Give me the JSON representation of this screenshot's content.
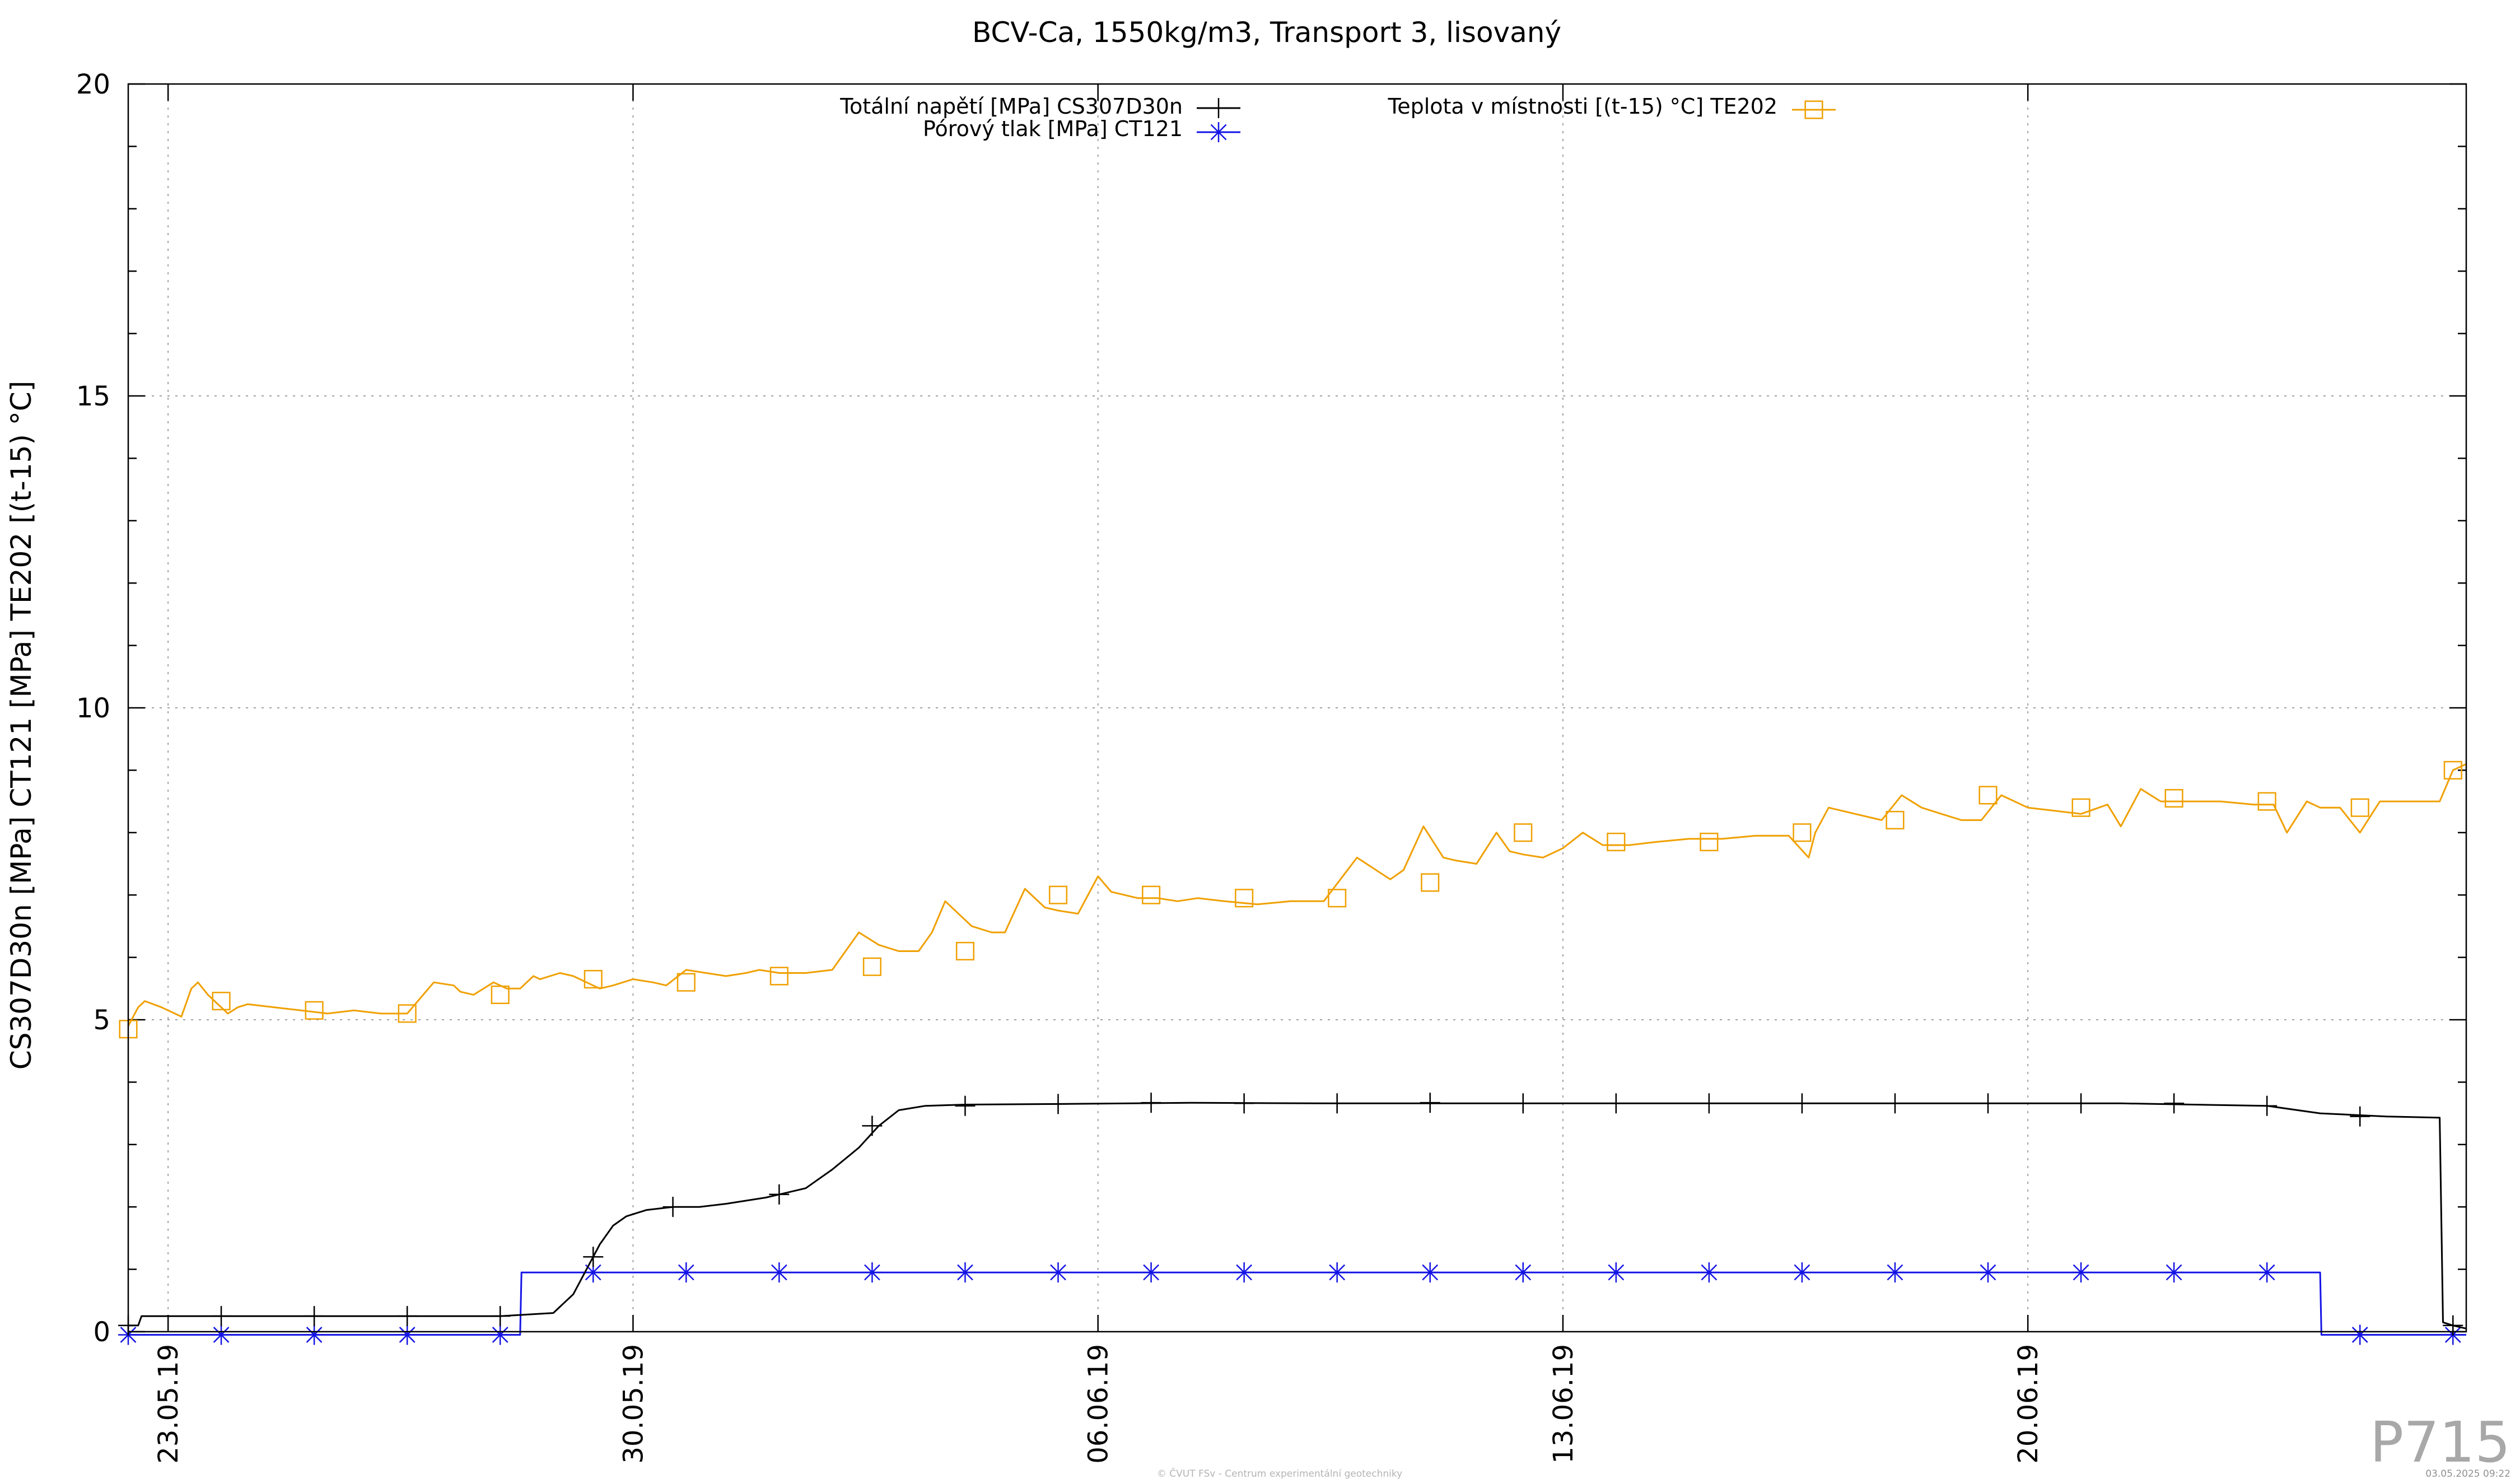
{
  "chart_data": {
    "type": "line",
    "title": "BCV-Ca, 1550kg/m3, Transport 3, lisovaný",
    "ylabel": "CS307D30n [MPa] CT121 [MPa] TE202 [(t-15) °C]",
    "xlabel": "",
    "ylim": [
      0,
      20
    ],
    "yticks": [
      "0",
      "5",
      "10",
      "15",
      "20"
    ],
    "x_unit": "days",
    "xlim": [
      0,
      35.2
    ],
    "xticks": [
      {
        "label": "23.05.19",
        "x": 0.6
      },
      {
        "label": "30.05.19",
        "x": 7.6
      },
      {
        "label": "06.06.19",
        "x": 14.6
      },
      {
        "label": "13.06.19",
        "x": 21.6
      },
      {
        "label": "20.06.19",
        "x": 28.6
      }
    ],
    "grid": true,
    "legend_position": "top",
    "series": [
      {
        "name": "Totální napětí [MPa] CS307D30n",
        "color": "#000000",
        "marker": "plus",
        "x": [
          0,
          0.15,
          0.2,
          1.4,
          2.8,
          4.2,
          5.6,
          6.4,
          6.7,
          6.85,
          7.0,
          7.1,
          7.3,
          7.5,
          7.8,
          8.2,
          8.6,
          9.0,
          9.6,
          10.2,
          10.6,
          11.0,
          11.3,
          11.6,
          12.0,
          12.6,
          14.0,
          16.0,
          18.0,
          20.0,
          22.0,
          24.0,
          26.0,
          28.0,
          30.0,
          32.2,
          33.0,
          34.0,
          34.8,
          34.85,
          35.0,
          35.2
        ],
        "y": [
          0.1,
          0.1,
          0.25,
          0.25,
          0.25,
          0.25,
          0.25,
          0.3,
          0.6,
          0.9,
          1.2,
          1.4,
          1.7,
          1.85,
          1.95,
          2.0,
          2.0,
          2.05,
          2.15,
          2.3,
          2.6,
          2.95,
          3.3,
          3.55,
          3.62,
          3.64,
          3.65,
          3.67,
          3.66,
          3.66,
          3.66,
          3.66,
          3.66,
          3.66,
          3.66,
          3.62,
          3.5,
          3.45,
          3.43,
          0.15,
          0.1,
          0.05
        ],
        "marker_x": [
          0.0,
          1.4,
          2.8,
          4.2,
          5.6,
          7.0,
          8.2,
          9.8,
          11.2,
          12.6,
          14.0,
          15.4,
          16.8,
          18.2,
          19.6,
          21.0,
          22.4,
          23.8,
          25.2,
          26.6,
          28.0,
          29.4,
          30.8,
          32.2,
          33.6,
          35.0
        ],
        "marker_y": [
          0.1,
          0.25,
          0.25,
          0.25,
          0.25,
          1.2,
          2.0,
          2.2,
          3.3,
          3.62,
          3.65,
          3.67,
          3.66,
          3.66,
          3.67,
          3.66,
          3.66,
          3.66,
          3.66,
          3.66,
          3.66,
          3.66,
          3.66,
          3.62,
          3.45,
          0.1
        ]
      },
      {
        "name": "Pórový tlak [MPa] CT121",
        "color": "#1414e6",
        "marker": "star",
        "x": [
          0,
          5.9,
          5.92,
          33.0,
          33.02,
          35.2
        ],
        "y": [
          -0.05,
          -0.05,
          0.95,
          0.95,
          -0.05,
          -0.05
        ],
        "marker_x": [
          0,
          1.4,
          2.8,
          4.2,
          5.6,
          7.0,
          8.4,
          9.8,
          11.2,
          12.6,
          14.0,
          15.4,
          16.8,
          18.2,
          19.6,
          21.0,
          22.4,
          23.8,
          25.2,
          26.6,
          28.0,
          29.4,
          30.8,
          32.2,
          33.6,
          35.0
        ],
        "marker_y": [
          -0.05,
          -0.05,
          -0.05,
          -0.05,
          -0.05,
          0.95,
          0.95,
          0.95,
          0.95,
          0.95,
          0.95,
          0.95,
          0.95,
          0.95,
          0.95,
          0.95,
          0.95,
          0.95,
          0.95,
          0.95,
          0.95,
          0.95,
          0.95,
          0.95,
          -0.05,
          -0.05
        ]
      },
      {
        "name": "Teplota v místnosti [(t-15) °C] TE202",
        "color": "#f0a000",
        "marker": "square",
        "x": [
          0,
          0.15,
          0.25,
          0.5,
          0.8,
          0.95,
          1.05,
          1.2,
          1.5,
          1.65,
          1.8,
          2.2,
          2.6,
          3.0,
          3.4,
          3.8,
          4.2,
          4.6,
          4.9,
          5.0,
          5.2,
          5.5,
          5.7,
          5.9,
          6.1,
          6.2,
          6.5,
          6.7,
          6.9,
          7.1,
          7.3,
          7.6,
          7.9,
          8.1,
          8.4,
          8.7,
          9.0,
          9.3,
          9.5,
          9.8,
          10.2,
          10.6,
          11.0,
          11.3,
          11.6,
          11.9,
          12.1,
          12.3,
          12.7,
          13.0,
          13.2,
          13.5,
          13.8,
          14.0,
          14.3,
          14.6,
          14.8,
          15.0,
          15.2,
          15.5,
          15.8,
          16.1,
          16.5,
          17.0,
          17.5,
          18.0,
          18.5,
          19.0,
          19.2,
          19.5,
          19.8,
          20.0,
          20.3,
          20.6,
          20.8,
          21.0,
          21.3,
          21.6,
          21.9,
          22.2,
          22.6,
          23.0,
          23.5,
          24.0,
          24.5,
          25.0,
          25.3,
          25.4,
          25.6,
          26.0,
          26.4,
          26.7,
          27.0,
          27.3,
          27.6,
          27.9,
          28.2,
          28.6,
          29.0,
          29.4,
          29.8,
          30.0,
          30.3,
          30.6,
          31.0,
          31.5,
          32.0,
          32.3,
          32.5,
          32.8,
          33.0,
          33.3,
          33.6,
          33.9,
          34.2,
          34.5,
          34.8,
          35.0,
          35.2
        ],
        "y": [
          4.9,
          5.2,
          5.3,
          5.2,
          5.05,
          5.5,
          5.6,
          5.4,
          5.1,
          5.2,
          5.25,
          5.2,
          5.15,
          5.1,
          5.15,
          5.1,
          5.1,
          5.6,
          5.55,
          5.45,
          5.4,
          5.6,
          5.5,
          5.5,
          5.7,
          5.65,
          5.75,
          5.7,
          5.6,
          5.5,
          5.55,
          5.65,
          5.6,
          5.55,
          5.8,
          5.75,
          5.7,
          5.75,
          5.8,
          5.75,
          5.75,
          5.8,
          6.4,
          6.2,
          6.1,
          6.1,
          6.4,
          6.9,
          6.5,
          6.4,
          6.4,
          7.1,
          6.8,
          6.75,
          6.7,
          7.3,
          7.05,
          7.0,
          6.95,
          6.95,
          6.9,
          6.95,
          6.9,
          6.85,
          6.9,
          6.9,
          7.6,
          7.25,
          7.4,
          8.1,
          7.6,
          7.55,
          7.5,
          8.0,
          7.7,
          7.65,
          7.6,
          7.75,
          8.0,
          7.8,
          7.8,
          7.85,
          7.9,
          7.9,
          7.95,
          7.95,
          7.6,
          8.0,
          8.4,
          8.3,
          8.2,
          8.6,
          8.4,
          8.3,
          8.2,
          8.2,
          8.6,
          8.4,
          8.35,
          8.3,
          8.45,
          8.1,
          8.7,
          8.5,
          8.5,
          8.5,
          8.45,
          8.45,
          8.0,
          8.5,
          8.4,
          8.4,
          8.0,
          8.5,
          8.5,
          8.5,
          8.5,
          9.0,
          9.1
        ],
        "marker_x": [
          0,
          1.4,
          2.8,
          4.2,
          5.6,
          7.0,
          8.4,
          9.8,
          11.2,
          12.6,
          14.0,
          15.4,
          16.8,
          18.2,
          19.6,
          21.0,
          22.4,
          23.8,
          25.2,
          26.6,
          28.0,
          29.4,
          30.8,
          32.2,
          33.6,
          35.0
        ],
        "marker_y": [
          4.85,
          5.3,
          5.15,
          5.1,
          5.4,
          5.65,
          5.6,
          5.7,
          5.85,
          6.1,
          7.0,
          7.0,
          6.95,
          6.95,
          7.2,
          8.0,
          7.85,
          7.85,
          8.0,
          8.2,
          8.6,
          8.4,
          8.55,
          8.5,
          8.4,
          9.0
        ]
      }
    ]
  },
  "watermark": {
    "code": "P715",
    "copyright": "© ČVUT FSv - Centrum experimentální geotechniky",
    "date": "03.05.2025 09:22"
  }
}
